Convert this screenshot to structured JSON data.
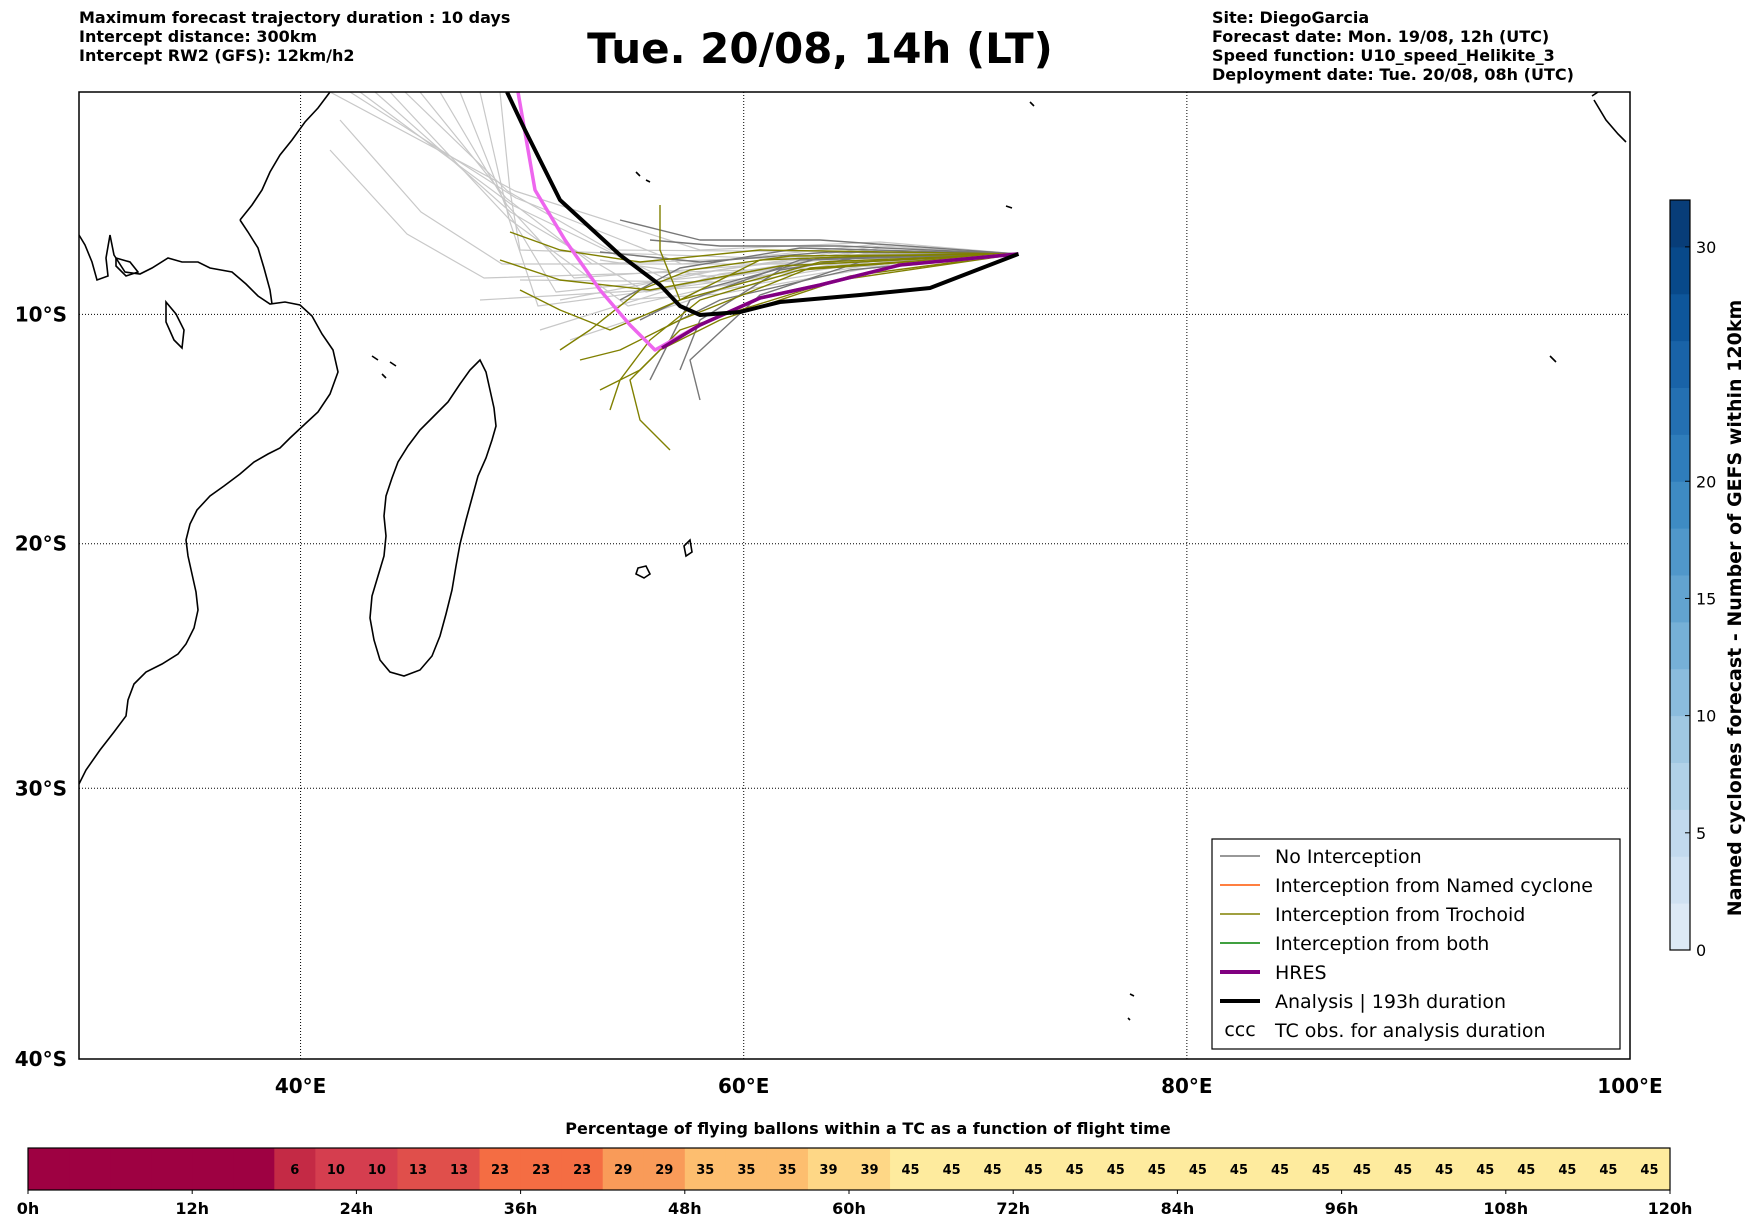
{
  "header": {
    "left_lines": [
      "Maximum forecast trajectory duration : 10 days",
      "Intercept distance: 300km",
      "Intercept RW2 (GFS):  12km/h2"
    ],
    "right_lines": [
      "Site: DiegoGarcia",
      "Forecast date: Mon. 19/08, 12h (UTC)",
      "Speed function: U10_speed_Helikite_3",
      "Deployment date: Tue. 20/08, 08h (UTC)"
    ],
    "title": "Tue. 20/08, 14h (LT)"
  },
  "map": {
    "lon_range": [
      30,
      100
    ],
    "lat_range": [
      -40,
      0
    ],
    "lat_ticks": [
      {
        "value": -10,
        "label": "10°S"
      },
      {
        "value": -20,
        "label": "20°S"
      },
      {
        "value": -30,
        "label": "30°S"
      },
      {
        "value": -40,
        "label": "40°S"
      }
    ],
    "lon_ticks": [
      {
        "value": 40,
        "label": "40°E"
      },
      {
        "value": 60,
        "label": "60°E"
      },
      {
        "value": 80,
        "label": "80°E"
      },
      {
        "value": 100,
        "label": "100°E"
      }
    ],
    "launch_site": {
      "lon": 72.4,
      "lat": -7.3
    },
    "colors": {
      "no_interception": "#777777",
      "named_cyclone": "#ff5500",
      "trochoid": "#808000",
      "both": "#008000",
      "hres": "#800080",
      "hres_early": "#ee66ee",
      "analysis": "#000000",
      "ensemble_light": "#c8c8c8"
    }
  },
  "legend": {
    "items": [
      {
        "label": "No Interception",
        "kind": "no_interception"
      },
      {
        "label": "Interception from Named cyclone",
        "kind": "named_cyclone"
      },
      {
        "label": "Interception from Trochoid",
        "kind": "trochoid"
      },
      {
        "label": "Interception from both",
        "kind": "both"
      },
      {
        "label": "HRES",
        "kind": "hres"
      },
      {
        "label": "Analysis | 193h duration",
        "kind": "analysis"
      },
      {
        "label": "TC obs. for analysis duration",
        "kind": "tc_obs"
      }
    ]
  },
  "colorbar": {
    "label": "Named cyclones forecast - Number of GEFS within 120km",
    "range": [
      0,
      32
    ],
    "ticks": [
      0,
      5,
      10,
      15,
      20,
      30
    ],
    "colors": [
      "#dce9f6",
      "#cfe1f2",
      "#c2d9ee",
      "#b1d2e8",
      "#a0c8e2",
      "#8bbcdd",
      "#76b0d7",
      "#62a3d0",
      "#5097ca",
      "#3e8bc3",
      "#2f7dbb",
      "#2470b2",
      "#1963a8",
      "#0e569b",
      "#08498a",
      "#083d78"
    ]
  },
  "percentage_bar": {
    "title": "Percentage of flying ballons within a TC as a function of flight time",
    "values": [
      "",
      "",
      "",
      "",
      "",
      "",
      "6",
      "10",
      "10",
      "13",
      "13",
      "23",
      "23",
      "23",
      "29",
      "29",
      "35",
      "35",
      "35",
      "39",
      "39",
      "45",
      "45",
      "45",
      "45",
      "45",
      "45",
      "45",
      "45",
      "45",
      "45",
      "45",
      "45",
      "45",
      "45",
      "45",
      "45",
      "45",
      "45",
      "45"
    ],
    "colors": [
      "#9e0142",
      "#9e0142",
      "#9e0142",
      "#9e0142",
      "#9e0142",
      "#9e0142",
      "#c42a45",
      "#d53e4f",
      "#d53e4f",
      "#e04f4b",
      "#e04f4b",
      "#f46d43",
      "#f46d43",
      "#f46d43",
      "#f99b59",
      "#f99b59",
      "#fdbe6f",
      "#fdbe6f",
      "#fdbe6f",
      "#fed786",
      "#fed786",
      "#feeb9e",
      "#feeb9e",
      "#feeb9e",
      "#feeb9e",
      "#feeb9e",
      "#feeb9e",
      "#feeb9e",
      "#feeb9e",
      "#feeb9e",
      "#feeb9e",
      "#feeb9e",
      "#feeb9e",
      "#feeb9e",
      "#feeb9e",
      "#feeb9e",
      "#feeb9e",
      "#feeb9e",
      "#feeb9e",
      "#feeb9e"
    ],
    "time_labels": [
      "0h",
      "12h",
      "24h",
      "36h",
      "48h",
      "60h",
      "72h",
      "84h",
      "96h",
      "108h",
      "120h"
    ]
  }
}
